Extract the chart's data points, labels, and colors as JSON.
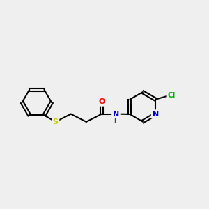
{
  "background_color": "#efefef",
  "bond_color": "#000000",
  "bond_lw": 1.5,
  "atom_colors": {
    "O": "#ff0000",
    "N": "#0000cc",
    "S": "#cccc00",
    "Cl": "#00aa00"
  },
  "figsize": [
    3.0,
    3.0
  ],
  "dpi": 100,
  "xlim": [
    0,
    10
  ],
  "ylim": [
    2,
    8
  ]
}
